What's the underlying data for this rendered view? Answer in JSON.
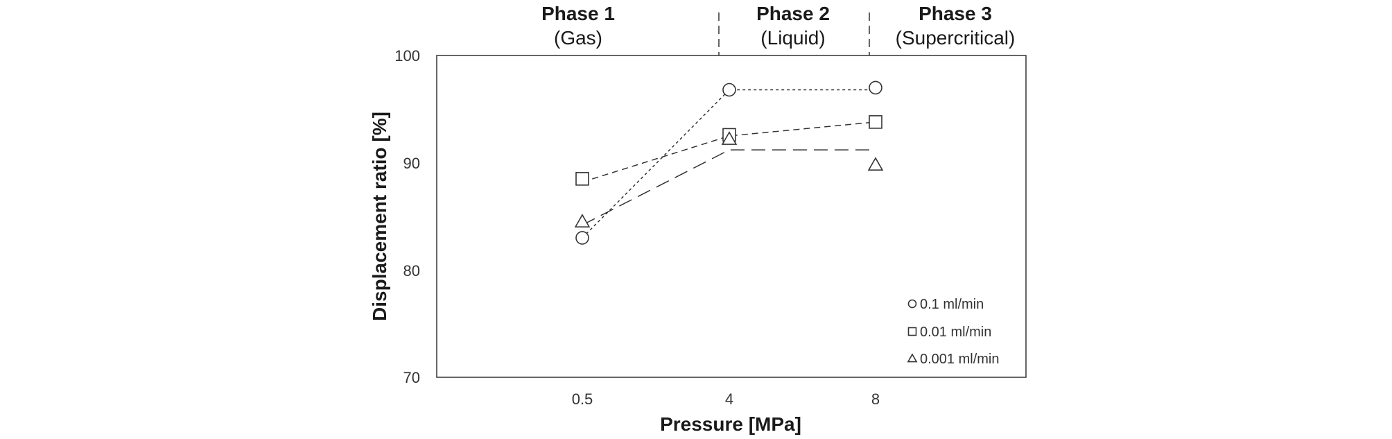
{
  "chart_data": {
    "type": "scatter",
    "xlabel": "Pressure [MPa]",
    "ylabel": "Displacement ratio [%]",
    "categories": [
      "0.5",
      "4",
      "8"
    ],
    "ylim": [
      70,
      100
    ],
    "yticks": [
      "100",
      "90",
      "80",
      "70"
    ],
    "grid": false,
    "legend_position": "bottom-right",
    "phases": [
      {
        "name": "Phase 1",
        "state": "(Gas)"
      },
      {
        "name": "Phase 2",
        "state": "(Liquid)"
      },
      {
        "name": "Phase 3",
        "state": "(Supercritical)"
      }
    ],
    "series": [
      {
        "name": "0.1 ml/min",
        "marker": "circle",
        "values": [
          83.0,
          96.8,
          97.0
        ],
        "trend": [
          [
            0.5,
            83.0
          ],
          [
            4,
            96.8
          ],
          [
            8,
            96.8
          ]
        ],
        "trend_style": "dotted"
      },
      {
        "name": "0.01 ml/min",
        "marker": "square",
        "values": [
          88.5,
          92.6,
          93.8
        ],
        "trend": [
          [
            0.5,
            88.2
          ],
          [
            4,
            92.5
          ],
          [
            8,
            93.8
          ]
        ],
        "trend_style": "dashed"
      },
      {
        "name": "0.001 ml/min",
        "marker": "triangle",
        "values": [
          84.5,
          92.2,
          89.8
        ],
        "trend": [
          [
            0.5,
            84.2
          ],
          [
            4,
            91.2
          ],
          [
            8,
            91.2
          ]
        ],
        "trend_style": "long-dashed"
      }
    ]
  }
}
